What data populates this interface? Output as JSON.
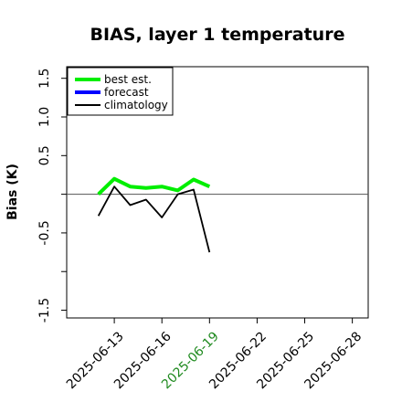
{
  "chart_data": {
    "type": "line",
    "title": "BIAS, layer 1 temperature",
    "ylabel": "Bias (K)",
    "xlabel": "",
    "ylim": [
      -1.6,
      1.65
    ],
    "xlim": [
      "2025-06-10",
      "2025-06-29"
    ],
    "yticks": [
      -1.5,
      -1.0,
      -0.5,
      0.0,
      0.5,
      1.0,
      1.5
    ],
    "ytick_labels": [
      "-1.5",
      "",
      "-0.5",
      "",
      "0.5",
      "1.0",
      "1.5"
    ],
    "xticks": [
      "2025-06-13",
      "2025-06-16",
      "2025-06-19",
      "2025-06-22",
      "2025-06-25",
      "2025-06-28"
    ],
    "highlight_tick": "2025-06-19",
    "highlight_color": "#1f8a1f",
    "grid": false,
    "legend_position": "top-left",
    "reference_line": 0.0,
    "series": [
      {
        "name": "best est.",
        "color": "#00ee00",
        "x": [
          "2025-06-12",
          "2025-06-13",
          "2025-06-14",
          "2025-06-15",
          "2025-06-16",
          "2025-06-17",
          "2025-06-18",
          "2025-06-19"
        ],
        "values": [
          0.0,
          0.2,
          0.1,
          0.08,
          0.1,
          0.05,
          0.19,
          0.1
        ]
      },
      {
        "name": "forecast",
        "color": "#0000ff",
        "x": [],
        "values": []
      },
      {
        "name": "climatology",
        "color": "#000000",
        "x": [
          "2025-06-12",
          "2025-06-13",
          "2025-06-14",
          "2025-06-15",
          "2025-06-16",
          "2025-06-17",
          "2025-06-18",
          "2025-06-19"
        ],
        "values": [
          -0.28,
          0.1,
          -0.14,
          -0.07,
          -0.3,
          0.0,
          0.06,
          -0.75
        ]
      }
    ]
  }
}
